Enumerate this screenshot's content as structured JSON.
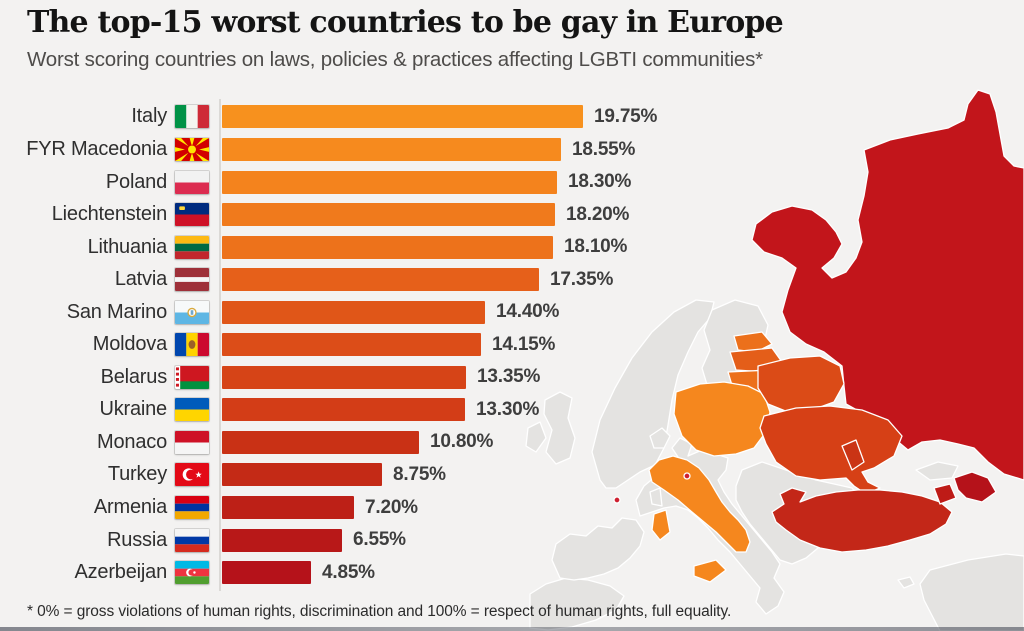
{
  "header": {
    "title": "The top-15 worst countries to be gay in Europe",
    "subtitle": "Worst scoring countries on laws, policies & practices affecting LGBTI communities*"
  },
  "footnote": "* 0% = gross violations of human rights, discrimination and 100% = respect of human rights, full equality.",
  "chart_data": {
    "type": "bar",
    "orientation": "horizontal",
    "title": "The top-15 worst countries to be gay in Europe",
    "subtitle": "Worst scoring countries on laws, policies & practices affecting LGBTI communities*",
    "xlabel": "",
    "ylabel": "",
    "unit": "%",
    "xlim": [
      0,
      21.5
    ],
    "grid": false,
    "legend": false,
    "categories": [
      "Italy",
      "FYR Macedonia",
      "Poland",
      "Liechtenstein",
      "Lithuania",
      "Latvia",
      "San Marino",
      "Moldova",
      "Belarus",
      "Ukraine",
      "Monaco",
      "Turkey",
      "Armenia",
      "Russia",
      "Azerbeijan"
    ],
    "values": [
      19.75,
      18.55,
      18.3,
      18.2,
      18.1,
      17.35,
      14.4,
      14.15,
      13.35,
      13.3,
      10.8,
      8.75,
      7.2,
      6.55,
      4.85
    ],
    "value_labels": [
      "19.75%",
      "18.55%",
      "18.30%",
      "18.20%",
      "18.10%",
      "17.35%",
      "14.40%",
      "14.15%",
      "13.35%",
      "13.30%",
      "10.80%",
      "8.75%",
      "7.20%",
      "6.55%",
      "4.85%"
    ],
    "flags": [
      "italy",
      "macedonia",
      "poland",
      "liechtenstein",
      "lithuania",
      "latvia",
      "san-marino",
      "moldova",
      "belarus",
      "ukraine",
      "monaco",
      "turkey",
      "armenia",
      "russia",
      "azerbaijan"
    ],
    "bar_colors": [
      "#F7911E",
      "#F68A1E",
      "#F4831D",
      "#F07A1C",
      "#ED721B",
      "#E6601A",
      "#E05618",
      "#DC4D18",
      "#D64417",
      "#D33D17",
      "#C93115",
      "#C42A16",
      "#BD2017",
      "#B81818",
      "#B5121A"
    ]
  },
  "map": {
    "sea_color": "#F3F2F1",
    "land_color": "#E4E3E1",
    "border_color": "#FFFFFF",
    "region_colors": {
      "russia": "#C2151B",
      "poland": "#F5871E",
      "italy": "#F5871E",
      "estonia": "#EC701B",
      "latvia": "#E45E19",
      "lithuania": "#EC701B",
      "kaliningrad": "#C2151B",
      "belarus": "#DB4B17",
      "ukraine": "#D64016",
      "moldova": "#CA3415",
      "turkey": "#C32718",
      "armenia": "#BE1B17",
      "azerbaijan": "#B5121A",
      "monaco": "#CE2030",
      "san-marino": "#CE2030"
    }
  }
}
